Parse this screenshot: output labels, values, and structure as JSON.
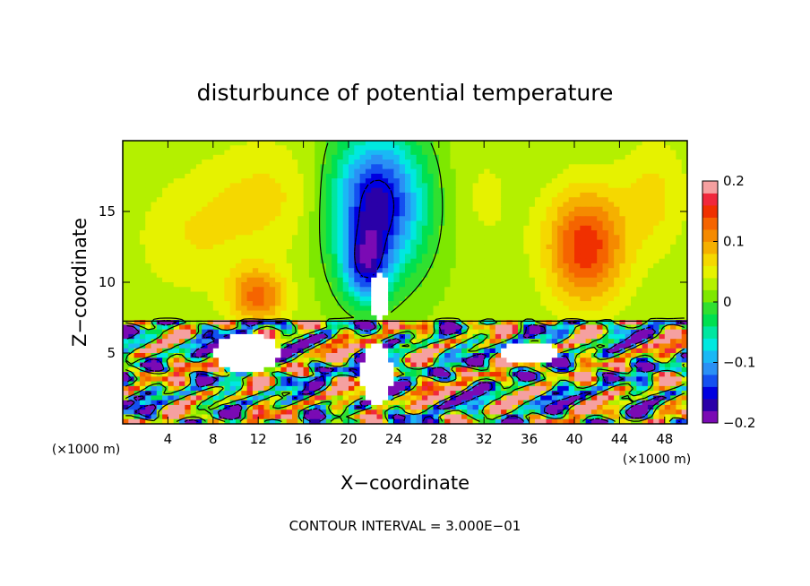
{
  "chart_data": {
    "type": "heatmap",
    "title": "disturbunce of potential temperature",
    "xlabel": "X−coordinate",
    "ylabel": "Z−coordinate",
    "x_unit": "(×1000 m)",
    "y_unit": "(×1000 m)",
    "xlim": [
      0,
      50
    ],
    "ylim": [
      0,
      20
    ],
    "x_ticks": [
      4,
      8,
      12,
      16,
      20,
      24,
      28,
      32,
      36,
      40,
      44,
      48
    ],
    "y_ticks": [
      5,
      10,
      15
    ],
    "x_tick_labels": [
      "4",
      "8",
      "12",
      "16",
      "20",
      "24",
      "28",
      "32",
      "36",
      "40",
      "44",
      "48"
    ],
    "y_tick_labels": [
      "5",
      "10",
      "15"
    ],
    "colorbar": {
      "min": -0.2,
      "max": 0.2,
      "tick_values": [
        0.2,
        0.1,
        0,
        -0.1,
        -0.2
      ],
      "tick_labels": [
        "0.2",
        "0.1",
        "0",
        "−0.1",
        "−0.2"
      ],
      "levels": [
        -0.2,
        -0.18,
        -0.16,
        -0.14,
        -0.12,
        -0.1,
        -0.08,
        -0.06,
        -0.04,
        -0.02,
        0,
        0.02,
        0.04,
        0.06,
        0.08,
        0.1,
        0.12,
        0.14,
        0.16,
        0.18,
        0.2
      ],
      "colors": [
        "#7a0ab4",
        "#2a00a8",
        "#0000e0",
        "#1450f0",
        "#2a90f5",
        "#1ab8f5",
        "#00e8e0",
        "#00e6a0",
        "#00e050",
        "#30e030",
        "#7ee800",
        "#b4f000",
        "#e6f200",
        "#f5d800",
        "#f5b000",
        "#f58a00",
        "#f56400",
        "#f03000",
        "#f0283c",
        "#f5a0a0"
      ]
    },
    "blobs": [
      {
        "x": 22.5,
        "z": 15.5,
        "sx": 4.2,
        "sz": 5.0,
        "v": -0.2
      },
      {
        "x": 21.5,
        "z": 11.0,
        "sx": 2.0,
        "sz": 2.5,
        "v": -0.12
      },
      {
        "x": 41.0,
        "z": 12.5,
        "sx": 3.5,
        "sz": 4.0,
        "v": 0.13
      },
      {
        "x": 12.0,
        "z": 9.0,
        "sx": 2.5,
        "sz": 2.0,
        "v": 0.1
      },
      {
        "x": 13.0,
        "z": 16.0,
        "sx": 6.0,
        "sz": 4.0,
        "v": 0.04
      },
      {
        "x": 6.0,
        "z": 13.0,
        "sx": 5.0,
        "sz": 4.0,
        "v": 0.03
      },
      {
        "x": 32.0,
        "z": 16.0,
        "sx": 3.0,
        "sz": 4.0,
        "v": 0.02
      },
      {
        "x": 47.0,
        "z": 16.0,
        "sx": 3.0,
        "sz": 4.0,
        "v": 0.04
      }
    ],
    "contour_interval": "CONTOUR INTERVAL = 3.000E−01"
  }
}
